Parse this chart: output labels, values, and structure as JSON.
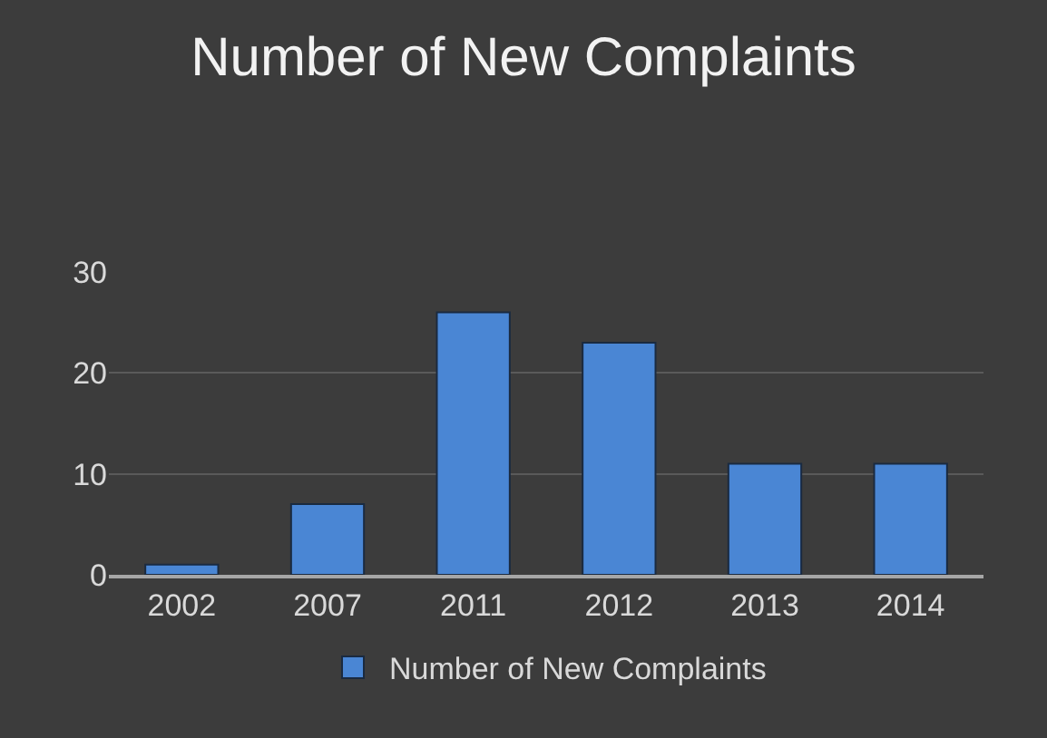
{
  "chart_data": {
    "type": "bar",
    "title": "Number of New Complaints",
    "categories": [
      "2002",
      "2007",
      "2011",
      "2012",
      "2013",
      "2014"
    ],
    "series": [
      {
        "name": "Number of New Complaints",
        "color": "#4a86d4",
        "values": [
          1,
          7,
          26,
          23,
          11,
          11
        ]
      }
    ],
    "ylim": [
      0,
      30
    ],
    "yticks": [
      0,
      10,
      20,
      30
    ],
    "grid": "y",
    "legend": "bottom"
  }
}
